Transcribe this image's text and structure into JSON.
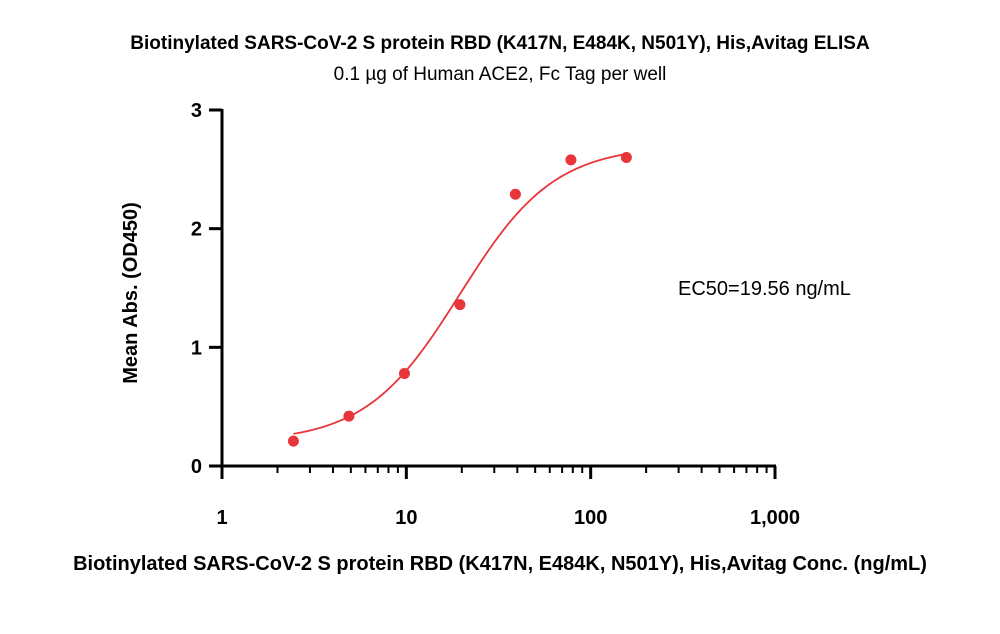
{
  "chart_data": {
    "type": "scatter",
    "title": "Biotinylated SARS-CoV-2 S protein RBD (K417N, E484K, N501Y), His,Avitag ELISA",
    "subtitle": "0.1 µg of Human ACE2, Fc Tag per well",
    "xlabel": "Biotinylated SARS-CoV-2 S protein RBD (K417N, E484K, N501Y), His,Avitag Conc. (ng/mL)",
    "ylabel": "Mean Abs. (OD450)",
    "x_scale": "log10",
    "xlim": [
      1,
      1000
    ],
    "ylim": [
      0,
      3
    ],
    "x_ticks": [
      {
        "value": 1,
        "label": "1"
      },
      {
        "value": 10,
        "label": "10"
      },
      {
        "value": 100,
        "label": "100"
      },
      {
        "value": 1000,
        "label": "1,000"
      }
    ],
    "y_ticks": [
      {
        "value": 0,
        "label": "0"
      },
      {
        "value": 1,
        "label": "1"
      },
      {
        "value": 2,
        "label": "2"
      },
      {
        "value": 3,
        "label": "3"
      }
    ],
    "grid": false,
    "annotation": "EC50=19.56 ng/mL",
    "points": [
      {
        "x": 2.44,
        "y": 0.21
      },
      {
        "x": 4.88,
        "y": 0.42
      },
      {
        "x": 9.77,
        "y": 0.78
      },
      {
        "x": 19.53,
        "y": 1.36
      },
      {
        "x": 39.06,
        "y": 2.29
      },
      {
        "x": 78.13,
        "y": 2.58
      },
      {
        "x": 156.25,
        "y": 2.6
      }
    ],
    "fit": {
      "type": "4PL",
      "bottom": 0.2,
      "top": 2.7,
      "ec50": 19.56,
      "hill": 1.7,
      "x_range": [
        2.44,
        156.25
      ]
    },
    "colors": {
      "points": "#e8353a",
      "curve": "#e8353a",
      "axes": "#000000"
    }
  }
}
